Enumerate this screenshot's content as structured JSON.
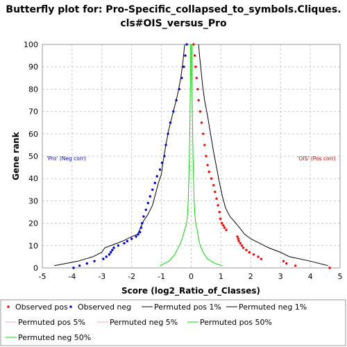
{
  "chart_data": {
    "type": "scatter",
    "title_line1": "Butterfly plot for: Pro-Specific_collapsed_to_symbols.Cliques.",
    "title_line2": "cls#OIS_versus_Pro",
    "xlabel": "Score (log2_Ratio_of_Classes)",
    "ylabel": "Gene rank",
    "xlim": [
      -5,
      5
    ],
    "ylim": [
      0,
      100
    ],
    "x_ticks": [
      "-5",
      "-4",
      "-3",
      "-2",
      "-1",
      "0",
      "1",
      "2",
      "3",
      "4",
      "5"
    ],
    "y_ticks": [
      "0",
      "10",
      "20",
      "30",
      "40",
      "50",
      "60",
      "70",
      "80",
      "90",
      "100"
    ],
    "grid": true,
    "annotations": [
      {
        "text": "'Pro' (Neg corr)",
        "x": -4.85,
        "y": 49,
        "color": "#0000cc"
      },
      {
        "text": "'OIS' (Pos corr)",
        "x": 4.85,
        "y": 49,
        "color": "#cc0000",
        "anchor": "end"
      }
    ],
    "colors": {
      "observed_pos": "#ff0000",
      "observed_neg": "#0000dd",
      "permuted_1pct": "#000000",
      "permuted_5pct": "#ffaaaa",
      "permuted_50pct": "#00dd00"
    },
    "series": [
      {
        "name": "Observed pos",
        "kind": "points",
        "color": "#ff0000",
        "points": [
          [
            4.65,
            0
          ],
          [
            3.5,
            1
          ],
          [
            3.2,
            2
          ],
          [
            3.1,
            3
          ],
          [
            2.35,
            4
          ],
          [
            2.25,
            5
          ],
          [
            2.1,
            6
          ],
          [
            1.95,
            7
          ],
          [
            1.85,
            8
          ],
          [
            1.75,
            9
          ],
          [
            1.7,
            10
          ],
          [
            1.65,
            11
          ],
          [
            1.6,
            12
          ],
          [
            1.58,
            13
          ],
          [
            1.55,
            14
          ],
          [
            1.18,
            17
          ],
          [
            1.12,
            18
          ],
          [
            1.08,
            19
          ],
          [
            1.03,
            20
          ],
          [
            0.98,
            22
          ],
          [
            0.95,
            25
          ],
          [
            0.9,
            28
          ],
          [
            0.85,
            31
          ],
          [
            0.8,
            34
          ],
          [
            0.75,
            37
          ],
          [
            0.68,
            40
          ],
          [
            0.6,
            43
          ],
          [
            0.55,
            46
          ],
          [
            0.5,
            50
          ],
          [
            0.45,
            55
          ],
          [
            0.4,
            60
          ],
          [
            0.35,
            65
          ],
          [
            0.3,
            70
          ],
          [
            0.25,
            75
          ],
          [
            0.22,
            80
          ],
          [
            0.18,
            85
          ],
          [
            0.15,
            90
          ],
          [
            0.12,
            95
          ],
          [
            0.08,
            100
          ]
        ]
      },
      {
        "name": "Observed neg",
        "kind": "points",
        "color": "#0000dd",
        "points": [
          [
            -3.95,
            0
          ],
          [
            -3.75,
            1
          ],
          [
            -3.5,
            2
          ],
          [
            -3.25,
            3
          ],
          [
            -2.95,
            4
          ],
          [
            -2.85,
            5
          ],
          [
            -2.75,
            6
          ],
          [
            -2.7,
            7
          ],
          [
            -2.65,
            8
          ],
          [
            -2.6,
            9
          ],
          [
            -2.45,
            10
          ],
          [
            -2.25,
            11
          ],
          [
            -2.15,
            12
          ],
          [
            -2.0,
            13
          ],
          [
            -1.85,
            14
          ],
          [
            -1.78,
            15
          ],
          [
            -1.72,
            16
          ],
          [
            -1.68,
            18
          ],
          [
            -1.65,
            20
          ],
          [
            -1.6,
            23
          ],
          [
            -1.52,
            26
          ],
          [
            -1.45,
            29
          ],
          [
            -1.38,
            32
          ],
          [
            -1.3,
            35
          ],
          [
            -1.22,
            38
          ],
          [
            -1.15,
            41
          ],
          [
            -1.05,
            44
          ],
          [
            -0.98,
            47
          ],
          [
            -0.9,
            50
          ],
          [
            -0.85,
            55
          ],
          [
            -0.78,
            60
          ],
          [
            -0.7,
            65
          ],
          [
            -0.6,
            70
          ],
          [
            -0.5,
            75
          ],
          [
            -0.4,
            80
          ],
          [
            -0.32,
            85
          ],
          [
            -0.25,
            90
          ],
          [
            -0.2,
            95
          ],
          [
            -0.15,
            100
          ]
        ]
      },
      {
        "name": "Permuted pos 1%",
        "kind": "line",
        "color": "#000000",
        "points": [
          [
            4.6,
            1
          ],
          [
            4.0,
            3
          ],
          [
            3.3,
            5
          ],
          [
            3.0,
            7
          ],
          [
            2.6,
            9
          ],
          [
            2.3,
            11
          ],
          [
            2.0,
            13
          ],
          [
            1.8,
            15
          ],
          [
            1.5,
            20
          ],
          [
            1.3,
            23
          ],
          [
            1.15,
            27
          ],
          [
            1.05,
            32
          ],
          [
            0.95,
            38
          ],
          [
            0.85,
            45
          ],
          [
            0.75,
            52
          ],
          [
            0.65,
            60
          ],
          [
            0.55,
            68
          ],
          [
            0.45,
            75
          ],
          [
            0.38,
            82
          ],
          [
            0.32,
            90
          ],
          [
            0.28,
            95
          ],
          [
            0.25,
            100
          ]
        ]
      },
      {
        "name": "Permuted neg 1%",
        "kind": "line",
        "color": "#000000",
        "points": [
          [
            -4.6,
            1
          ],
          [
            -3.8,
            3
          ],
          [
            -3.3,
            5
          ],
          [
            -3.0,
            7
          ],
          [
            -2.9,
            9
          ],
          [
            -2.5,
            11
          ],
          [
            -2.3,
            12
          ],
          [
            -2.0,
            14
          ],
          [
            -1.8,
            15
          ],
          [
            -1.7,
            18
          ],
          [
            -1.6,
            21
          ],
          [
            -1.45,
            24
          ],
          [
            -1.3,
            28
          ],
          [
            -1.2,
            33
          ],
          [
            -1.1,
            38
          ],
          [
            -1.0,
            42
          ],
          [
            -0.95,
            47
          ],
          [
            -0.85,
            55
          ],
          [
            -0.75,
            62
          ],
          [
            -0.6,
            70
          ],
          [
            -0.45,
            78
          ],
          [
            -0.35,
            85
          ],
          [
            -0.28,
            92
          ],
          [
            -0.22,
            100
          ]
        ]
      },
      {
        "name": "Permuted pos 5%",
        "kind": "line",
        "color": "#ffaaaa",
        "points": []
      },
      {
        "name": "Permuted neg 5%",
        "kind": "line",
        "color": "#ffaaaa",
        "points": []
      },
      {
        "name": "Permuted pos 50%",
        "kind": "line",
        "color": "#00dd00",
        "points": [
          [
            1.05,
            1
          ],
          [
            0.8,
            2
          ],
          [
            0.55,
            4
          ],
          [
            0.4,
            7
          ],
          [
            0.3,
            10
          ],
          [
            0.25,
            13
          ],
          [
            0.2,
            17
          ],
          [
            0.15,
            20
          ],
          [
            0.12,
            25
          ],
          [
            0.1,
            30
          ],
          [
            0.08,
            40
          ],
          [
            0.06,
            50
          ],
          [
            0.05,
            60
          ],
          [
            0.04,
            70
          ],
          [
            0.03,
            80
          ],
          [
            0.02,
            90
          ],
          [
            0.02,
            100
          ]
        ]
      },
      {
        "name": "Permuted neg 50%",
        "kind": "line",
        "color": "#00dd00",
        "points": [
          [
            -1.05,
            1
          ],
          [
            -0.75,
            3
          ],
          [
            -0.55,
            6
          ],
          [
            -0.4,
            10
          ],
          [
            -0.3,
            13
          ],
          [
            -0.22,
            17
          ],
          [
            -0.15,
            20
          ],
          [
            -0.12,
            25
          ],
          [
            -0.1,
            30
          ],
          [
            -0.08,
            40
          ],
          [
            -0.06,
            50
          ],
          [
            -0.05,
            60
          ],
          [
            -0.04,
            70
          ],
          [
            -0.03,
            80
          ],
          [
            -0.02,
            90
          ],
          [
            -0.02,
            100
          ]
        ]
      }
    ]
  }
}
